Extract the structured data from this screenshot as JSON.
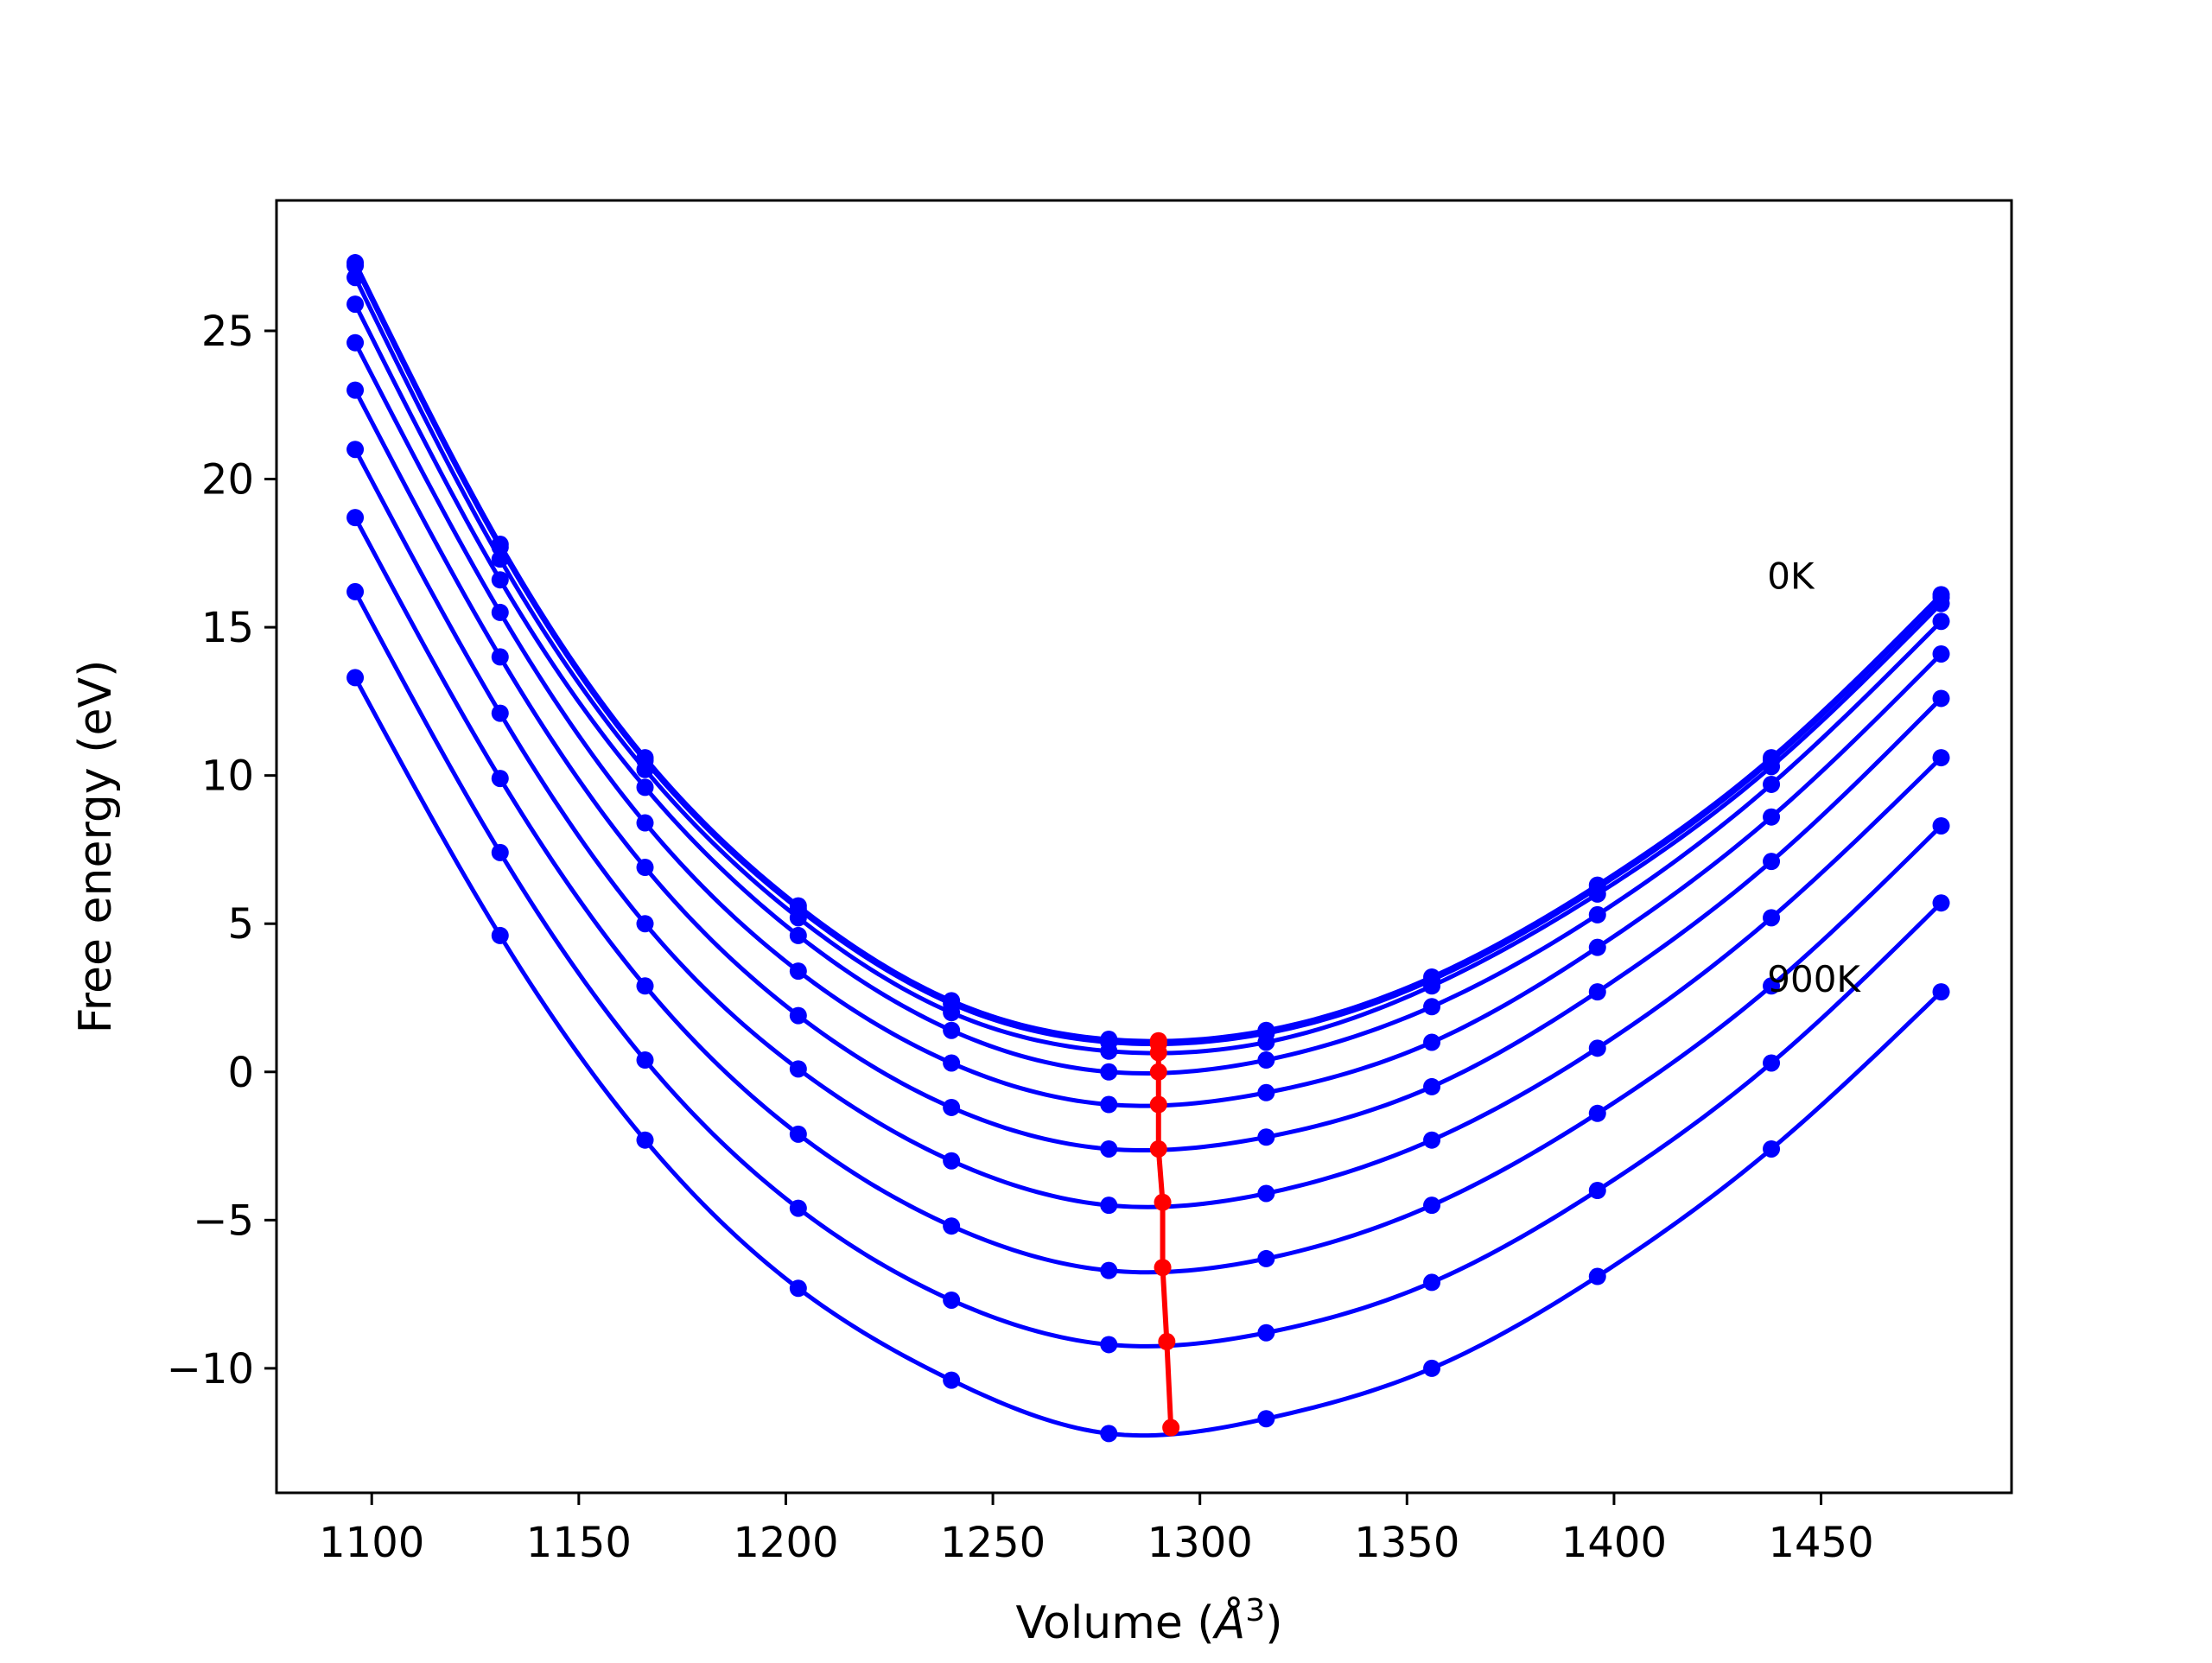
{
  "chart_data": {
    "type": "line",
    "title": "",
    "xlabel": "Volume (Å³)",
    "xlabel_main": "Volume (",
    "xlabel_unit": "Å",
    "xlabel_exp": "3",
    "xlabel_close": ")",
    "ylabel": "Free energy (eV)",
    "xlim": [
      1077,
      1496
    ],
    "ylim": [
      -14.2,
      29.4
    ],
    "xticks": [
      1100,
      1150,
      1200,
      1250,
      1300,
      1350,
      1400,
      1450
    ],
    "yticks": [
      -10,
      -5,
      0,
      5,
      10,
      15,
      20,
      25
    ],
    "xtick_labels": [
      "1100",
      "1150",
      "1200",
      "1250",
      "1300",
      "1350",
      "1400",
      "1450"
    ],
    "ytick_labels": [
      "−10",
      "−5",
      "0",
      "5",
      "10",
      "15",
      "20",
      "25"
    ],
    "grid": false,
    "curve_color": "#0000ff",
    "min_line_color": "#ff0000",
    "annotations": [
      {
        "text": "0K",
        "x": 1437,
        "y": 16.3
      },
      {
        "text": "900K",
        "x": 1437,
        "y": 2.7
      }
    ],
    "volumes": [
      1096,
      1131,
      1166,
      1203,
      1240,
      1278,
      1316,
      1356,
      1396,
      1438,
      1479
    ],
    "series": [
      {
        "F": [
          27.3,
          17.8,
          10.6,
          5.6,
          2.4,
          1.1,
          1.4,
          3.2,
          6.3,
          10.6,
          16.1
        ],
        "min": {
          "V": 1290,
          "F": 1.05
        }
      },
      {
        "F": [
          27.2,
          17.7,
          10.5,
          5.5,
          2.3,
          1.0,
          1.3,
          3.1,
          6.2,
          10.5,
          16.0
        ],
        "min": {
          "V": 1290,
          "F": 0.95
        }
      },
      {
        "F": [
          26.8,
          17.3,
          10.2,
          5.2,
          2.0,
          0.7,
          1.0,
          2.9,
          6.0,
          10.3,
          15.8
        ],
        "min": {
          "V": 1290,
          "F": 0.65
        }
      },
      {
        "F": [
          25.9,
          16.6,
          9.6,
          4.6,
          1.4,
          0.0,
          0.4,
          2.2,
          5.3,
          9.7,
          15.2
        ],
        "min": {
          "V": 1290,
          "F": 0.0
        }
      },
      {
        "F": [
          24.6,
          15.5,
          8.4,
          3.4,
          0.3,
          -1.1,
          -0.7,
          1.0,
          4.2,
          8.6,
          14.1
        ],
        "min": {
          "V": 1290,
          "F": -1.1
        }
      },
      {
        "F": [
          23.0,
          14.0,
          6.9,
          1.9,
          -1.2,
          -2.6,
          -2.2,
          -0.5,
          2.7,
          7.1,
          12.6
        ],
        "min": {
          "V": 1290,
          "F": -2.6
        }
      },
      {
        "F": [
          21.0,
          12.1,
          5.0,
          0.1,
          -3.0,
          -4.5,
          -4.1,
          -2.3,
          0.8,
          5.2,
          10.6
        ],
        "min": {
          "V": 1291,
          "F": -4.4
        }
      },
      {
        "F": [
          18.7,
          9.9,
          2.9,
          -2.1,
          -5.2,
          -6.7,
          -6.3,
          -4.5,
          -1.4,
          2.9,
          8.3
        ],
        "min": {
          "V": 1291,
          "F": -6.6
        }
      },
      {
        "F": [
          16.2,
          7.4,
          0.4,
          -4.6,
          -7.7,
          -9.2,
          -8.8,
          -7.1,
          -4.0,
          0.3,
          5.7
        ],
        "min": {
          "V": 1292,
          "F": -9.1
        }
      },
      {
        "F": [
          13.3,
          4.6,
          -2.3,
          -7.3,
          -10.4,
          -12.2,
          -11.7,
          -10.0,
          -6.9,
          -2.6,
          2.7
        ],
        "min": {
          "V": 1293,
          "F": -12.0
        }
      }
    ]
  }
}
